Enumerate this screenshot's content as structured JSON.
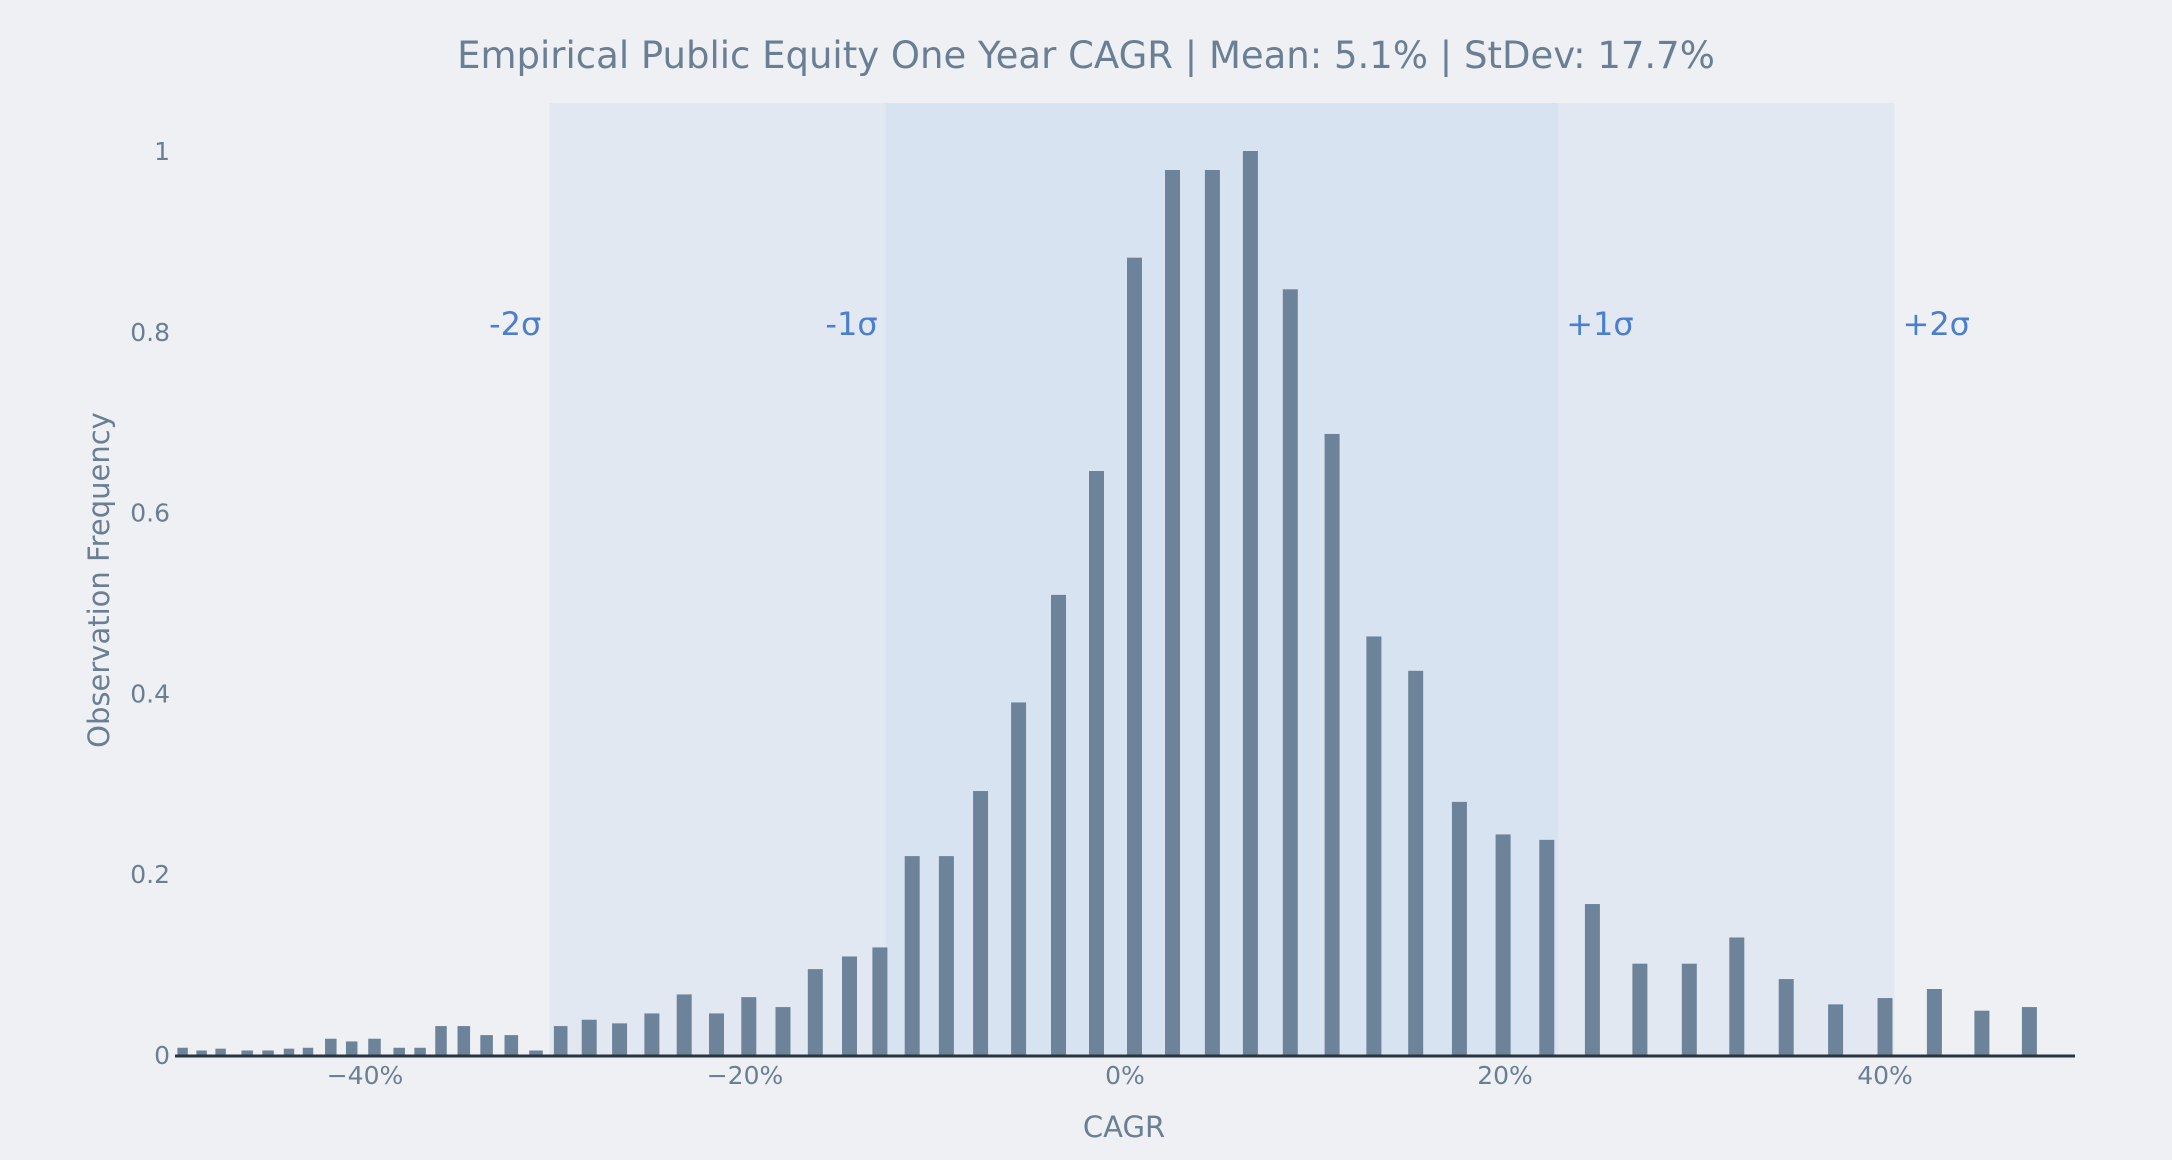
{
  "chart_data": {
    "type": "bar",
    "title": "Empirical Public Equity One Year CAGR | Mean: 5.1% | StDev: 17.7%",
    "xlabel": "CAGR",
    "ylabel": "Observation Frequency",
    "xlim": [
      -50,
      50
    ],
    "ylim": [
      0,
      1.05
    ],
    "grid": false,
    "legend": "none",
    "x_ticks": [
      {
        "value": -40,
        "label": "−40%"
      },
      {
        "value": -20,
        "label": "−20%"
      },
      {
        "value": 0,
        "label": "0%"
      },
      {
        "value": 20,
        "label": "20%"
      },
      {
        "value": 40,
        "label": "40%"
      }
    ],
    "y_ticks": [
      {
        "value": 0,
        "label": "0"
      },
      {
        "value": 0.2,
        "label": "0.2"
      },
      {
        "value": 0.4,
        "label": "0.4"
      },
      {
        "value": 0.6,
        "label": "0.6"
      },
      {
        "value": 0.8,
        "label": "0.8"
      },
      {
        "value": 1,
        "label": "1"
      }
    ],
    "sigma_bands": [
      {
        "from": -30.3,
        "to": 40.5,
        "color": "#e2e8f2"
      },
      {
        "from": -12.6,
        "to": 22.8,
        "color": "#d8e3f2"
      }
    ],
    "annotations": [
      {
        "label": "-2σ",
        "x": -30.3,
        "side": "left"
      },
      {
        "label": "-1σ",
        "x": -12.6,
        "side": "left"
      },
      {
        "label": "+1σ",
        "x": 22.8,
        "side": "right"
      },
      {
        "label": "+2σ",
        "x": 40.5,
        "side": "right"
      }
    ],
    "bar_color": "#6c8399",
    "annotation_color": "#4a7fcf",
    "series": [
      {
        "x": [
          -49.6,
          -48.6,
          -47.6,
          -46.2,
          -45.1,
          -44.0,
          -43.0,
          -41.8,
          -40.7,
          -39.5,
          -38.2,
          -37.1,
          -36.0,
          -34.8,
          -33.6,
          -32.3,
          -31.0,
          -29.7,
          -28.2,
          -26.6,
          -24.9,
          -23.2,
          -21.5,
          -19.8,
          -18.0,
          -16.3,
          -14.5,
          -12.9,
          -11.2,
          -9.4,
          -7.6,
          -5.6,
          -3.5,
          -1.5,
          0.5,
          2.5,
          4.6,
          6.6,
          8.7,
          10.9,
          13.1,
          15.3,
          17.6,
          19.9,
          22.2,
          24.6,
          27.1,
          29.7,
          32.2,
          34.8,
          37.4,
          40.0,
          42.6,
          45.1,
          47.6
        ],
        "values": [
          0.008,
          0.005,
          0.007,
          0.005,
          0.005,
          0.007,
          0.008,
          0.018,
          0.015,
          0.018,
          0.008,
          0.008,
          0.032,
          0.032,
          0.022,
          0.022,
          0.005,
          0.032,
          0.039,
          0.035,
          0.046,
          0.067,
          0.046,
          0.064,
          0.053,
          0.095,
          0.109,
          0.119,
          0.22,
          0.22,
          0.292,
          0.39,
          0.509,
          0.646,
          0.882,
          0.979,
          0.979,
          1.0,
          0.847,
          0.687,
          0.463,
          0.425,
          0.28,
          0.244,
          0.238,
          0.167,
          0.101,
          0.101,
          0.13,
          0.084,
          0.056,
          0.063,
          0.073,
          0.049,
          0.053
        ]
      }
    ]
  }
}
